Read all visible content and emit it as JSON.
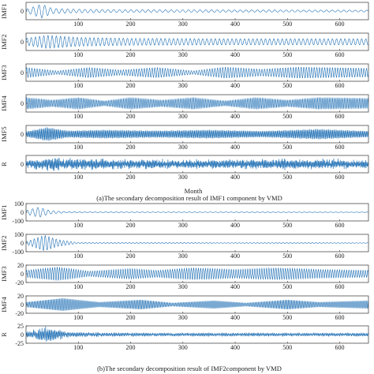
{
  "chart_data": [
    {
      "type": "line",
      "caption": "(a)The secondary decomposition result of IMF1 component by VMD",
      "xlabel": "Month",
      "xlim": [
        0,
        655
      ],
      "xticks": [
        100,
        200,
        300,
        400,
        500,
        600
      ],
      "series_color": "#1f6fb4",
      "panels": [
        {
          "ylabel": "IMF1",
          "ylim": [
            -20,
            20
          ],
          "yticks": [
            0
          ],
          "envelope": [
            [
              0,
              4
            ],
            [
              30,
              16
            ],
            [
              50,
              6
            ],
            [
              100,
              4
            ],
            [
              200,
              3
            ],
            [
              400,
              2.5
            ],
            [
              655,
              2
            ]
          ],
          "period": 11
        },
        {
          "ylabel": "IMF2",
          "ylim": [
            -20,
            20
          ],
          "yticks": [
            0
          ],
          "envelope": [
            [
              0,
              8
            ],
            [
              40,
              15
            ],
            [
              100,
              10
            ],
            [
              200,
              8
            ],
            [
              400,
              7
            ],
            [
              655,
              7
            ]
          ],
          "period": 8
        },
        {
          "ylabel": "IMF3",
          "ylim": [
            -20,
            20
          ],
          "yticks": [
            0
          ],
          "envelope": [
            [
              0,
              12
            ],
            [
              60,
              4
            ],
            [
              120,
              12
            ],
            [
              180,
              6
            ],
            [
              250,
              12
            ],
            [
              320,
              4
            ],
            [
              380,
              13
            ],
            [
              450,
              8
            ],
            [
              520,
              13
            ],
            [
              655,
              10
            ]
          ],
          "period": 5
        },
        {
          "ylabel": "IMF4",
          "ylim": [
            -20,
            20
          ],
          "yticks": [
            0
          ],
          "envelope": [
            [
              0,
              14
            ],
            [
              50,
              8
            ],
            [
              100,
              14
            ],
            [
              150,
              6
            ],
            [
              200,
              14
            ],
            [
              260,
              8
            ],
            [
              320,
              14
            ],
            [
              380,
              6
            ],
            [
              440,
              14
            ],
            [
              500,
              8
            ],
            [
              560,
              14
            ],
            [
              655,
              12
            ]
          ],
          "period": 3.2
        },
        {
          "ylabel": "IMF5",
          "ylim": [
            -20,
            20
          ],
          "yticks": [
            0
          ],
          "envelope": [
            [
              0,
              6
            ],
            [
              40,
              16
            ],
            [
              80,
              8
            ],
            [
              150,
              10
            ],
            [
              250,
              8
            ],
            [
              350,
              10
            ],
            [
              450,
              7
            ],
            [
              560,
              12
            ],
            [
              655,
              7
            ]
          ],
          "period": 2.4
        },
        {
          "ylabel": "R",
          "ylim": [
            -20,
            20
          ],
          "yticks": [
            0
          ],
          "envelope": [
            [
              0,
              10
            ],
            [
              50,
              16
            ],
            [
              100,
              12
            ],
            [
              300,
              10
            ],
            [
              500,
              12
            ],
            [
              655,
              10
            ]
          ],
          "period": 2.1,
          "noise": true
        }
      ]
    },
    {
      "type": "line",
      "caption": "(b)The secondary decomposition result of IMF2component by VMD",
      "xlabel": "",
      "xlim": [
        0,
        655
      ],
      "xticks": [
        100,
        200,
        300,
        400,
        500,
        600
      ],
      "series_color": "#1f6fb4",
      "panels": [
        {
          "ylabel": "IMF1",
          "ylim": [
            -100,
            100
          ],
          "yticks": [
            100,
            0,
            -100
          ],
          "envelope": [
            [
              0,
              20
            ],
            [
              25,
              60
            ],
            [
              45,
              20
            ],
            [
              80,
              5
            ],
            [
              655,
              2
            ]
          ],
          "period": 10
        },
        {
          "ylabel": "IMF2",
          "ylim": [
            -100,
            100
          ],
          "yticks": [
            100,
            0,
            -100
          ],
          "envelope": [
            [
              0,
              15
            ],
            [
              35,
              90
            ],
            [
              60,
              40
            ],
            [
              100,
              5
            ],
            [
              300,
              5
            ],
            [
              500,
              4
            ],
            [
              655,
              3
            ]
          ],
          "period": 7
        },
        {
          "ylabel": "IMF3",
          "ylim": [
            -20,
            20
          ],
          "yticks": [
            20,
            0,
            -20
          ],
          "envelope": [
            [
              0,
              8
            ],
            [
              60,
              16
            ],
            [
              120,
              6
            ],
            [
              200,
              12
            ],
            [
              250,
              8
            ],
            [
              320,
              14
            ],
            [
              400,
              10
            ],
            [
              480,
              14
            ],
            [
              560,
              10
            ],
            [
              655,
              8
            ]
          ],
          "period": 4.5
        },
        {
          "ylabel": "IMF4",
          "ylim": [
            -20,
            20
          ],
          "yticks": [
            20,
            0,
            -20
          ],
          "envelope": [
            [
              0,
              6
            ],
            [
              70,
              16
            ],
            [
              140,
              6
            ],
            [
              220,
              12
            ],
            [
              280,
              4
            ],
            [
              360,
              10
            ],
            [
              420,
              4
            ],
            [
              500,
              12
            ],
            [
              560,
              6
            ],
            [
              655,
              10
            ]
          ],
          "period": 3
        },
        {
          "ylabel": "R",
          "ylim": [
            -25,
            25
          ],
          "yticks": [
            25,
            0,
            -25
          ],
          "envelope": [
            [
              0,
              10
            ],
            [
              40,
              22
            ],
            [
              80,
              8
            ],
            [
              200,
              5
            ],
            [
              400,
              5
            ],
            [
              655,
              5
            ]
          ],
          "period": 2.3,
          "noise": true
        }
      ]
    }
  ]
}
